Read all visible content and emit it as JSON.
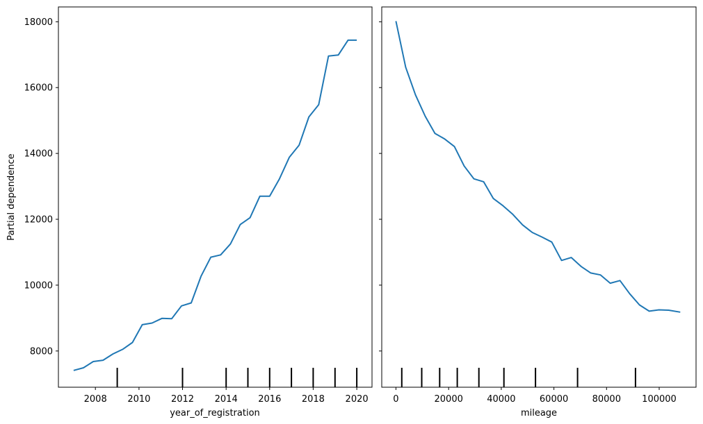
{
  "chart_data": {
    "type": "line",
    "shared_ylabel": "Partial dependence",
    "ylim": [
      6900,
      18450
    ],
    "yticks": [
      {
        "value": 8000,
        "label": "8000"
      },
      {
        "value": 10000,
        "label": "10000"
      },
      {
        "value": 12000,
        "label": "12000"
      },
      {
        "value": 14000,
        "label": "14000"
      },
      {
        "value": 16000,
        "label": "16000"
      },
      {
        "value": 18000,
        "label": "18000"
      }
    ],
    "line_color": "#1f77b4",
    "grid": false,
    "panels": [
      {
        "xlabel": "year_of_registration",
        "xlim": [
          2006.3,
          2020.7
        ],
        "xticks": [
          {
            "value": 2008,
            "label": "2008"
          },
          {
            "value": 2010,
            "label": "2010"
          },
          {
            "value": 2012,
            "label": "2012"
          },
          {
            "value": 2014,
            "label": "2014"
          },
          {
            "value": 2016,
            "label": "2016"
          },
          {
            "value": 2018,
            "label": "2018"
          },
          {
            "value": 2020,
            "label": "2020"
          }
        ],
        "x": [
          2007.0,
          2007.45,
          2007.9,
          2008.35,
          2008.8,
          2009.25,
          2009.7,
          2010.15,
          2010.6,
          2011.05,
          2011.5,
          2011.95,
          2012.4,
          2012.85,
          2013.3,
          2013.75,
          2014.2,
          2014.65,
          2015.1,
          2015.55,
          2016.0,
          2016.45,
          2016.9,
          2017.35,
          2017.8,
          2018.25,
          2018.7,
          2019.15,
          2019.6,
          2020.0
        ],
        "y": [
          7410,
          7490,
          7680,
          7720,
          7910,
          8050,
          8260,
          8800,
          8850,
          8990,
          8980,
          9370,
          9460,
          10270,
          10850,
          10920,
          11250,
          11840,
          12050,
          12700,
          12700,
          13230,
          13880,
          14250,
          15110,
          15480,
          16960,
          16990,
          17440,
          17440
        ],
        "rug": [
          2009,
          2012,
          2014,
          2015,
          2016,
          2017,
          2018,
          2019,
          2020
        ]
      },
      {
        "xlabel": "mileage",
        "xlim": [
          -5400,
          114000
        ],
        "xticks": [
          {
            "value": 0,
            "label": "0"
          },
          {
            "value": 20000,
            "label": "20000"
          },
          {
            "value": 40000,
            "label": "40000"
          },
          {
            "value": 60000,
            "label": "60000"
          },
          {
            "value": 80000,
            "label": "80000"
          },
          {
            "value": 100000,
            "label": "100000"
          }
        ],
        "x": [
          0,
          3700,
          7400,
          11100,
          14800,
          18500,
          22200,
          25900,
          29600,
          33300,
          37000,
          40700,
          44400,
          48100,
          51800,
          55500,
          59200,
          62900,
          66600,
          70300,
          74000,
          77700,
          81400,
          85100,
          88800,
          92500,
          96200,
          99900,
          103600,
          108000
        ],
        "y": [
          18020,
          16620,
          15780,
          15130,
          14610,
          14440,
          14210,
          13620,
          13230,
          13140,
          12630,
          12410,
          12150,
          11830,
          11600,
          11460,
          11310,
          10750,
          10840,
          10570,
          10370,
          10310,
          10060,
          10140,
          9740,
          9400,
          9210,
          9250,
          9240,
          9180
        ],
        "rug": [
          2200,
          9800,
          16600,
          23300,
          31500,
          41000,
          53000,
          69000,
          91000
        ]
      }
    ]
  }
}
